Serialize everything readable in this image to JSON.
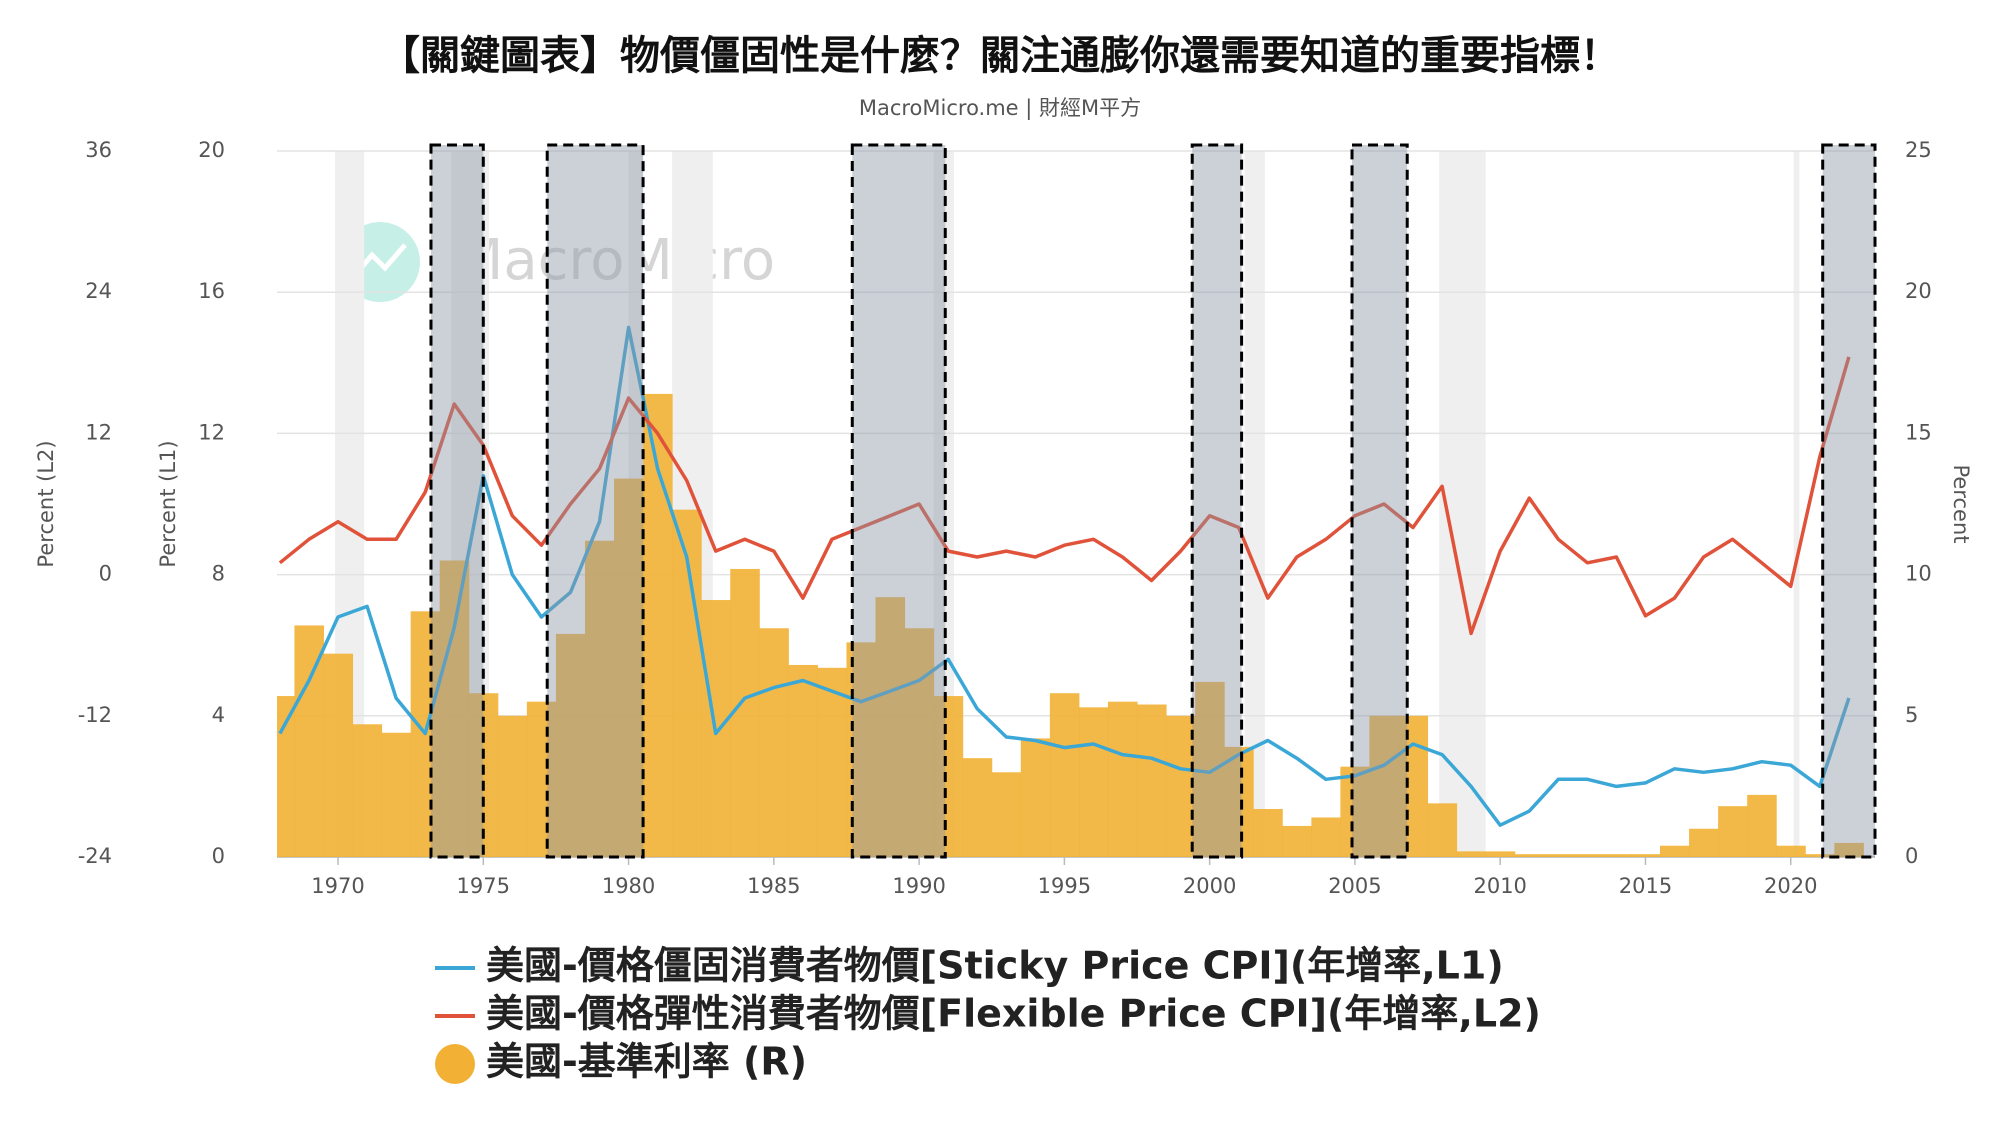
{
  "chart_data": {
    "type": "line",
    "title": "【關鍵圖表】物價僵固性是什麼？關注通膨你還需要知道的重要指標！",
    "subtitle": "MacroMicro.me | 財經M平方",
    "watermark": "MacroMicro",
    "y_label": "Percent (L1)",
    "y2_label": "Percent (L2)",
    "y3_label": "Percent",
    "x": [
      1968,
      1969,
      1970,
      1971,
      1972,
      1973,
      1974,
      1975,
      1976,
      1977,
      1978,
      1979,
      1980,
      1981,
      1982,
      1983,
      1984,
      1985,
      1986,
      1987,
      1988,
      1989,
      1990,
      1991,
      1992,
      1993,
      1994,
      1995,
      1996,
      1997,
      1998,
      1999,
      2000,
      2001,
      2002,
      2003,
      2004,
      2005,
      2006,
      2007,
      2008,
      2009,
      2010,
      2011,
      2012,
      2013,
      2014,
      2015,
      2016,
      2017,
      2018,
      2019,
      2020,
      2021,
      2022
    ],
    "xlim": [
      1967.9,
      2022.9
    ],
    "xticks": [
      1970,
      1975,
      1980,
      1985,
      1990,
      1995,
      2000,
      2005,
      2010,
      2015,
      2020
    ],
    "ylim": [
      0,
      20
    ],
    "yticks": [
      0,
      4,
      8,
      12,
      16,
      20
    ],
    "y2lim": [
      -24,
      36
    ],
    "y2ticks": [
      -24,
      -12,
      0,
      12,
      24,
      36
    ],
    "y3lim": [
      0,
      25
    ],
    "y3ticks": [
      0,
      5,
      10,
      15,
      20,
      25
    ],
    "grid": true,
    "series": [
      {
        "name": "美國-價格僵固消費者物價[Sticky Price CPI](年增率,L1)",
        "type": "line",
        "axis": "y",
        "color": "#3ba7d6",
        "values": [
          3.5,
          5.0,
          6.8,
          7.1,
          4.5,
          3.5,
          6.5,
          10.8,
          8.0,
          6.8,
          7.5,
          9.5,
          15.0,
          11.0,
          8.5,
          3.5,
          4.5,
          4.8,
          5.0,
          4.7,
          4.4,
          4.7,
          5.0,
          5.6,
          4.2,
          3.4,
          3.3,
          3.1,
          3.2,
          2.9,
          2.8,
          2.5,
          2.4,
          2.9,
          3.3,
          2.8,
          2.2,
          2.3,
          2.6,
          3.2,
          2.9,
          2.0,
          0.9,
          1.3,
          2.2,
          2.2,
          2.0,
          2.1,
          2.5,
          2.4,
          2.5,
          2.7,
          2.6,
          2.0,
          4.5
        ]
      },
      {
        "name": "美國-價格彈性消費者物價[Flexible Price CPI](年增率,L2)",
        "type": "line",
        "axis": "y2",
        "color": "#e0533a",
        "values": [
          1,
          3,
          4.5,
          3,
          3,
          7,
          14.5,
          11,
          5,
          2.5,
          6,
          9,
          15,
          12,
          8,
          2,
          3,
          2,
          -2,
          3,
          4,
          5,
          6,
          2,
          1.5,
          2,
          1.5,
          2.5,
          3,
          1.5,
          -0.5,
          2,
          5,
          4,
          -2,
          1.5,
          3,
          5,
          6,
          4,
          7.5,
          -5,
          2,
          6.5,
          3,
          1,
          1.5,
          -3.5,
          -2,
          1.5,
          3,
          1,
          -1,
          10,
          18.5
        ]
      },
      {
        "name": "美國-基準利率 (R)",
        "type": "bar",
        "axis": "y3",
        "color": "#f2b134",
        "values": [
          5.7,
          8.2,
          7.2,
          4.7,
          4.4,
          8.7,
          10.5,
          5.8,
          5.0,
          5.5,
          7.9,
          11.2,
          13.4,
          16.4,
          12.3,
          9.1,
          10.2,
          8.1,
          6.8,
          6.7,
          7.6,
          9.2,
          8.1,
          5.7,
          3.5,
          3.0,
          4.2,
          5.8,
          5.3,
          5.5,
          5.4,
          5.0,
          6.2,
          3.9,
          1.7,
          1.1,
          1.4,
          3.2,
          5.0,
          5.0,
          1.9,
          0.2,
          0.2,
          0.1,
          0.1,
          0.1,
          0.1,
          0.1,
          0.4,
          1.0,
          1.8,
          2.2,
          0.4,
          0.1,
          0.5
        ]
      }
    ],
    "recession_bands": [
      [
        1969.9,
        1970.9
      ],
      [
        1973.9,
        1975.2
      ],
      [
        1980.0,
        1980.5
      ],
      [
        1981.5,
        1982.9
      ],
      [
        1990.5,
        1991.2
      ],
      [
        2001.2,
        2001.9
      ],
      [
        2007.9,
        2009.5
      ],
      [
        2020.1,
        2020.3
      ]
    ],
    "highlight_bands": [
      [
        1973.2,
        1975.0
      ],
      [
        1977.2,
        1980.5
      ],
      [
        1987.7,
        1990.9
      ],
      [
        1999.4,
        2001.1
      ],
      [
        2004.9,
        2006.8
      ],
      [
        2021.1,
        2022.9
      ]
    ]
  }
}
